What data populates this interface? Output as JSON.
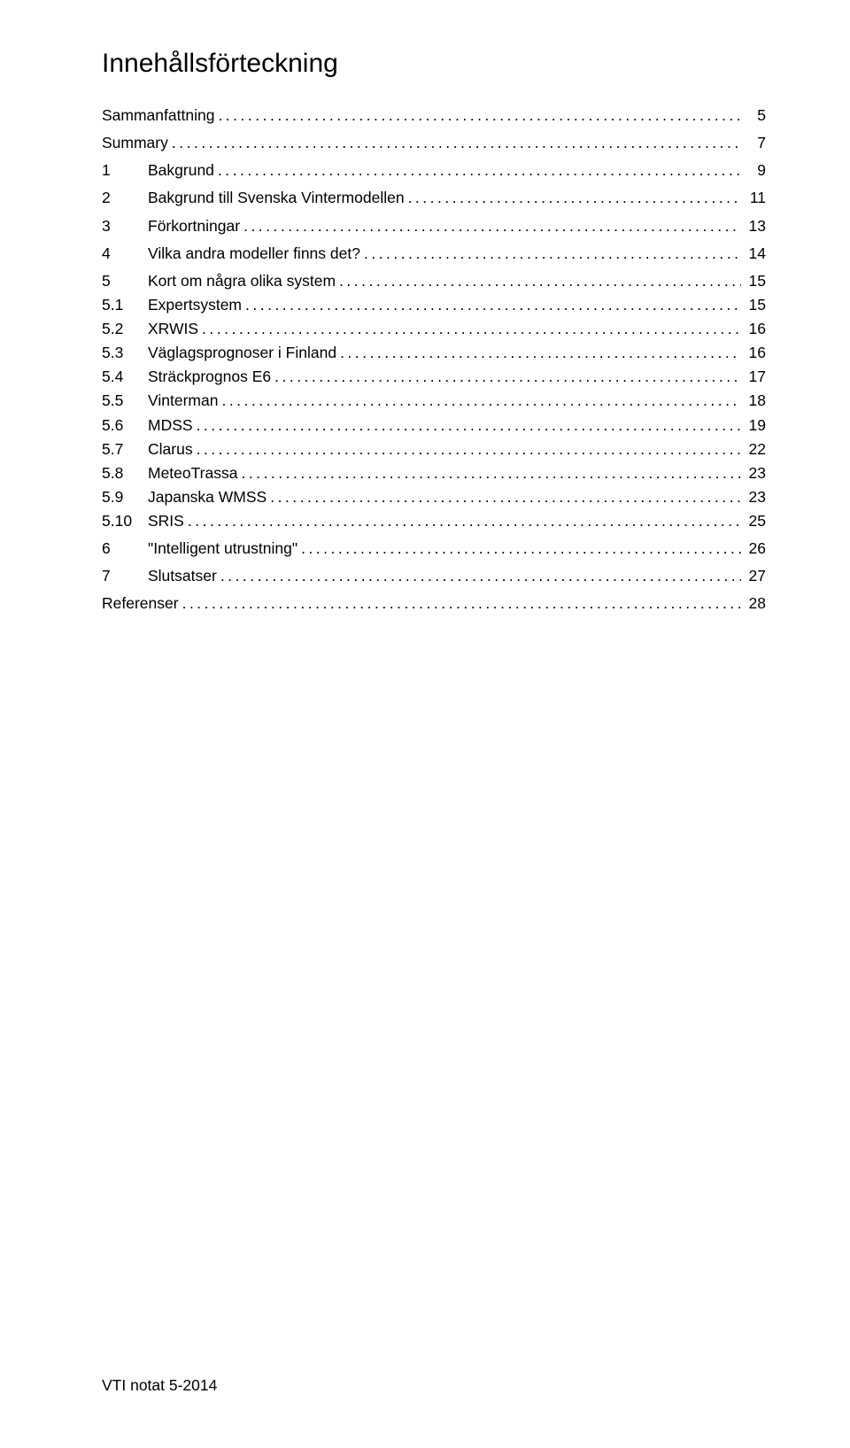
{
  "title": "Innehållsförteckning",
  "footer": "VTI notat 5-2014",
  "toc": [
    {
      "type": "top",
      "num": "",
      "label": "Sammanfattning",
      "page": "5"
    },
    {
      "type": "top",
      "num": "",
      "label": "Summary",
      "page": "7"
    },
    {
      "type": "top",
      "num": "1",
      "label": "Bakgrund",
      "page": "9"
    },
    {
      "type": "top",
      "num": "2",
      "label": "Bakgrund till Svenska Vintermodellen",
      "page": "11"
    },
    {
      "type": "top",
      "num": "3",
      "label": "Förkortningar",
      "page": "13"
    },
    {
      "type": "top",
      "num": "4",
      "label": "Vilka andra modeller finns det?",
      "page": "14"
    },
    {
      "type": "top",
      "num": "5",
      "label": "Kort om några olika system",
      "page": "15"
    },
    {
      "type": "sub",
      "num": "5.1",
      "label": "Expertsystem",
      "page": "15"
    },
    {
      "type": "sub",
      "num": "5.2",
      "label": "XRWIS",
      "page": "16"
    },
    {
      "type": "sub",
      "num": "5.3",
      "label": "Väglagsprognoser i Finland",
      "page": "16"
    },
    {
      "type": "sub",
      "num": "5.4",
      "label": "Sträckprognos E6",
      "page": "17"
    },
    {
      "type": "sub",
      "num": "5.5",
      "label": "Vinterman",
      "page": "18"
    },
    {
      "type": "sub",
      "num": "5.6",
      "label": "MDSS",
      "page": "19"
    },
    {
      "type": "sub",
      "num": "5.7",
      "label": "Clarus",
      "page": "22"
    },
    {
      "type": "sub",
      "num": "5.8",
      "label": "MeteoTrassa",
      "page": "23"
    },
    {
      "type": "sub",
      "num": "5.9",
      "label": "Japanska WMSS",
      "page": "23"
    },
    {
      "type": "sub",
      "num": "5.10",
      "label": "SRIS",
      "page": "25"
    },
    {
      "type": "top",
      "num": "6",
      "label": "\"Intelligent utrustning\"",
      "page": "26"
    },
    {
      "type": "top",
      "num": "7",
      "label": "Slutsatser",
      "page": "27"
    },
    {
      "type": "top",
      "num": "",
      "label": "Referenser",
      "page": "28"
    }
  ]
}
